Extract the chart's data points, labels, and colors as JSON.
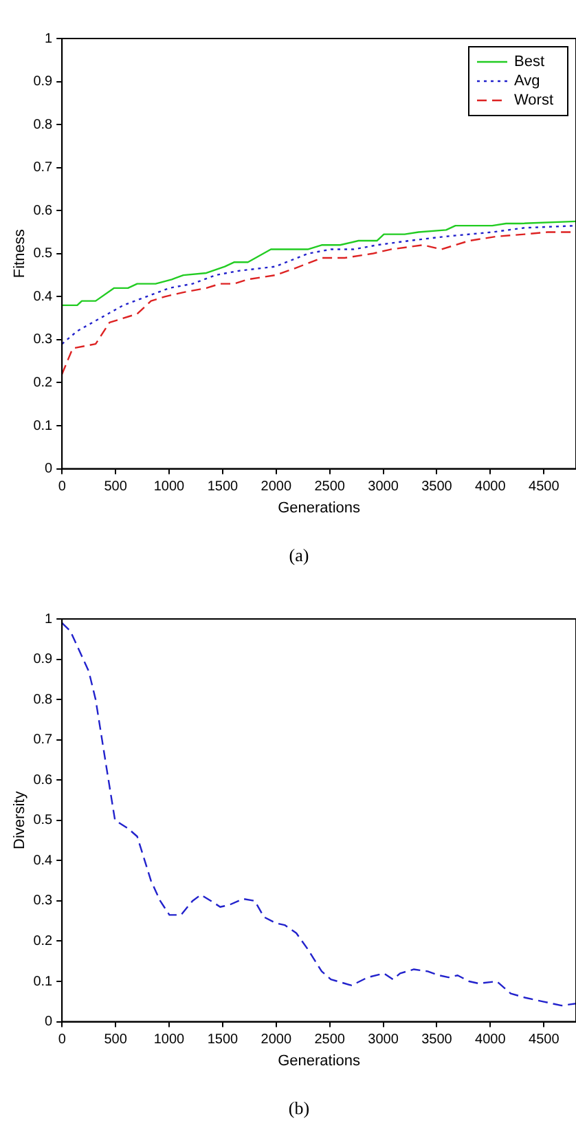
{
  "chart_data": [
    {
      "type": "line",
      "xlabel": "Generations",
      "ylabel": "Fitness",
      "xlim": [
        0,
        4800
      ],
      "xticks": [
        0,
        500,
        1000,
        1500,
        2000,
        2500,
        3000,
        3500,
        4000,
        4500
      ],
      "ylim": [
        0,
        1
      ],
      "yticks": [
        0,
        0.1,
        0.2,
        0.3,
        0.4,
        0.5,
        0.6,
        0.7,
        0.8,
        0.9,
        1
      ],
      "grid": false,
      "legend": "top right",
      "marker": "none",
      "annotations": [
        "(a)"
      ],
      "series": [
        {
          "name": "Best",
          "color": "#22cc22",
          "line_style": "solid",
          "x": [
            0,
            142,
            185,
            314,
            487,
            616,
            702,
            874,
            1025,
            1133,
            1348,
            1520,
            1606,
            1736,
            1951,
            2295,
            2425,
            2597,
            2769,
            2941,
            3006,
            3200,
            3329,
            3587,
            3674,
            4018,
            4147,
            4276,
            4800
          ],
          "values": [
            0.38,
            0.38,
            0.39,
            0.39,
            0.42,
            0.42,
            0.43,
            0.43,
            0.44,
            0.45,
            0.455,
            0.47,
            0.48,
            0.48,
            0.51,
            0.51,
            0.52,
            0.52,
            0.53,
            0.53,
            0.545,
            0.545,
            0.55,
            0.555,
            0.565,
            0.565,
            0.57,
            0.57,
            0.575
          ]
        },
        {
          "name": "Avg",
          "color": "#2222cc",
          "line_style": "dotted",
          "x": [
            0,
            142,
            357,
            573,
            788,
            1003,
            1219,
            1434,
            1649,
            1994,
            2295,
            2511,
            2726,
            2941,
            3243,
            3587,
            4018,
            4320,
            4800
          ],
          "values": [
            0.29,
            0.32,
            0.35,
            0.38,
            0.4,
            0.42,
            0.43,
            0.45,
            0.46,
            0.47,
            0.5,
            0.51,
            0.51,
            0.52,
            0.53,
            0.54,
            0.55,
            0.56,
            0.565
          ]
        },
        {
          "name": "Worst",
          "color": "#dd2222",
          "line_style": "dashed",
          "x": [
            0,
            100,
            314,
            444,
            702,
            831,
            960,
            1133,
            1348,
            1477,
            1606,
            1736,
            1994,
            2166,
            2425,
            2640,
            2898,
            3071,
            3372,
            3544,
            3803,
            4061,
            4320,
            4535,
            4800
          ],
          "values": [
            0.22,
            0.28,
            0.29,
            0.34,
            0.36,
            0.39,
            0.4,
            0.41,
            0.42,
            0.43,
            0.43,
            0.44,
            0.45,
            0.465,
            0.49,
            0.49,
            0.5,
            0.51,
            0.52,
            0.51,
            0.53,
            0.54,
            0.545,
            0.55,
            0.55
          ]
        }
      ]
    },
    {
      "type": "line",
      "xlabel": "Generations",
      "ylabel": "Diversity",
      "xlim": [
        0,
        4800
      ],
      "xticks": [
        0,
        500,
        1000,
        1500,
        2000,
        2500,
        3000,
        3500,
        4000,
        4500
      ],
      "ylim": [
        0,
        1
      ],
      "yticks": [
        0,
        0.1,
        0.2,
        0.3,
        0.4,
        0.5,
        0.6,
        0.7,
        0.8,
        0.9,
        1
      ],
      "grid": false,
      "legend": false,
      "marker": "none",
      "annotations": [
        "(b)"
      ],
      "series": [
        {
          "color": "#2222cc",
          "line_style": "dashed",
          "x": [
            0,
            78,
            250,
            314,
            422,
            495,
            616,
            702,
            831,
            917,
            1003,
            1111,
            1219,
            1296,
            1391,
            1477,
            1563,
            1692,
            1800,
            1886,
            1994,
            2080,
            2188,
            2295,
            2425,
            2511,
            2705,
            2855,
            3006,
            3092,
            3157,
            3286,
            3415,
            3523,
            3609,
            3695,
            3803,
            3889,
            4061,
            4190,
            4320,
            4492,
            4664,
            4800
          ],
          "values": [
            0.99,
            0.97,
            0.87,
            0.8,
            0.62,
            0.5,
            0.48,
            0.46,
            0.35,
            0.3,
            0.265,
            0.265,
            0.3,
            0.315,
            0.3,
            0.285,
            0.29,
            0.305,
            0.3,
            0.26,
            0.245,
            0.24,
            0.22,
            0.18,
            0.125,
            0.105,
            0.09,
            0.11,
            0.12,
            0.105,
            0.12,
            0.13,
            0.125,
            0.115,
            0.11,
            0.115,
            0.1,
            0.095,
            0.1,
            0.07,
            0.06,
            0.05,
            0.04,
            0.045
          ]
        }
      ]
    }
  ]
}
